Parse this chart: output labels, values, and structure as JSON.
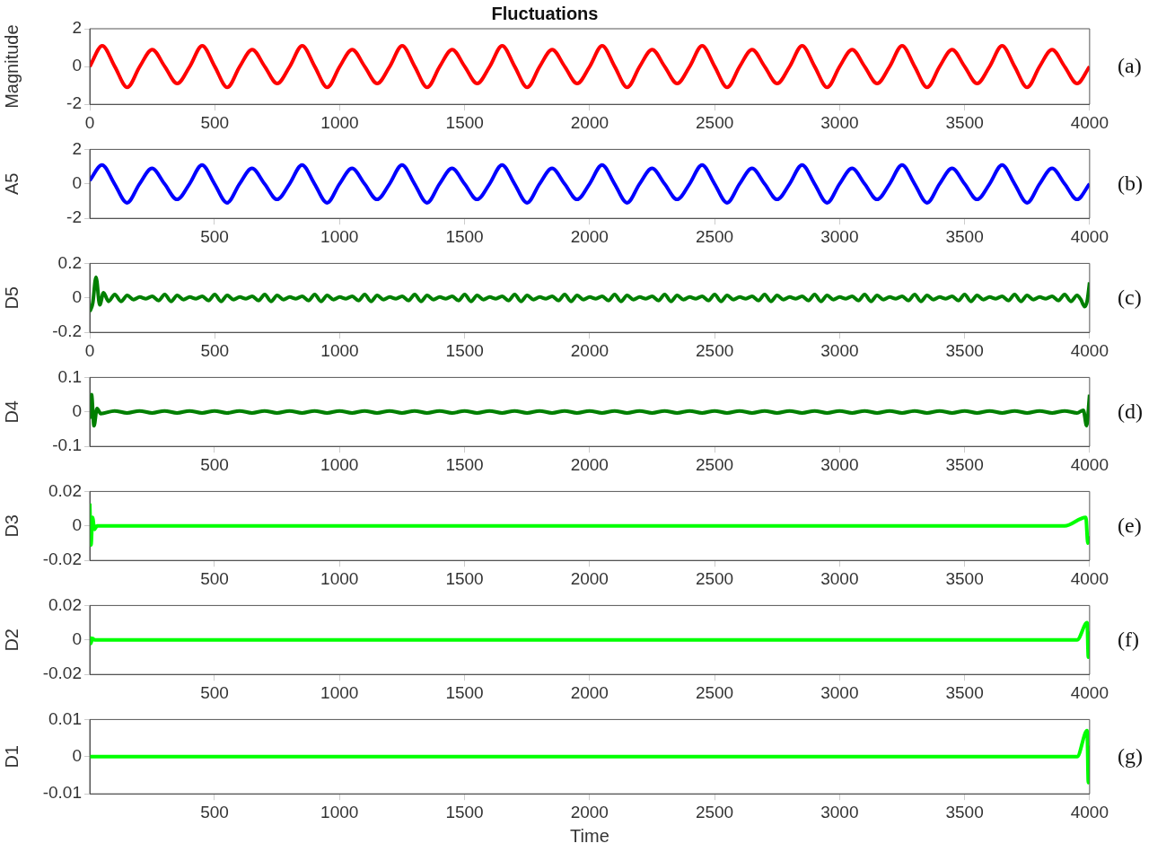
{
  "chart_data": [
    {
      "type": "line",
      "title": "Fluctuations",
      "ylabel": "Magnitude",
      "annotations": [
        "(a)"
      ],
      "legend": false,
      "grid": false,
      "xlim": [
        0,
        4000
      ],
      "xticks": [
        0,
        500,
        1000,
        1500,
        2000,
        2500,
        3000,
        3500,
        4000
      ],
      "ylim": [
        -2,
        2
      ],
      "yticks": [
        -2,
        0,
        2
      ],
      "series": [
        {
          "color": "#ff0000",
          "x": [
            0,
            50,
            100,
            150,
            200,
            250,
            300,
            350,
            400,
            450,
            500,
            550,
            600,
            650,
            700,
            750,
            800,
            850,
            900,
            950,
            1000,
            1050,
            1100,
            1150,
            1200,
            1250,
            1300,
            1350,
            1400,
            1450,
            1500,
            1550,
            1600,
            1650,
            1700,
            1750,
            1800,
            1850,
            1900,
            1950,
            2000,
            2050,
            2100,
            2150,
            2200,
            2250,
            2300,
            2350,
            2400,
            2450,
            2500,
            2550,
            2600,
            2650,
            2700,
            2750,
            2800,
            2850,
            2900,
            2950,
            3000,
            3050,
            3100,
            3150,
            3200,
            3250,
            3300,
            3350,
            3400,
            3450,
            3500,
            3550,
            3600,
            3650,
            3700,
            3750,
            3800,
            3850,
            3900,
            3950,
            4000
          ],
          "values": [
            0,
            1.1,
            0,
            -1.1,
            0,
            0.9,
            0,
            -0.9,
            0,
            1.1,
            0,
            -1.1,
            0,
            0.9,
            0,
            -0.9,
            0,
            1.1,
            0,
            -1.1,
            0,
            0.9,
            0,
            -0.9,
            0,
            1.1,
            0,
            -1.1,
            0,
            0.9,
            0,
            -0.9,
            0,
            1.1,
            0,
            -1.1,
            0,
            0.9,
            0,
            -0.9,
            0,
            1.1,
            0,
            -1.1,
            0,
            0.9,
            0,
            -0.9,
            0,
            1.1,
            0,
            -1.1,
            0,
            0.9,
            0,
            -0.9,
            0,
            1.1,
            0,
            -1.1,
            0,
            0.9,
            0,
            -0.9,
            0,
            1.1,
            0,
            -1.1,
            0,
            0.9,
            0,
            -0.9,
            0,
            1.1,
            0,
            -1.1,
            0,
            0.9,
            0,
            -0.9,
            0
          ]
        }
      ]
    },
    {
      "type": "line",
      "ylabel": "A5",
      "annotations": [
        "(b)"
      ],
      "legend": false,
      "grid": false,
      "xlim": [
        1,
        4000
      ],
      "xticks": [
        500,
        1000,
        1500,
        2000,
        2500,
        3000,
        3500,
        4000
      ],
      "ylim": [
        -2,
        2
      ],
      "yticks": [
        -2,
        0,
        2
      ],
      "series": [
        {
          "color": "#0000ff",
          "x": [
            1,
            50,
            100,
            150,
            200,
            250,
            300,
            350,
            400,
            450,
            500,
            550,
            600,
            650,
            700,
            750,
            800,
            850,
            900,
            950,
            1000,
            1050,
            1100,
            1150,
            1200,
            1250,
            1300,
            1350,
            1400,
            1450,
            1500,
            1550,
            1600,
            1650,
            1700,
            1750,
            1800,
            1850,
            1900,
            1950,
            2000,
            2050,
            2100,
            2150,
            2200,
            2250,
            2300,
            2350,
            2400,
            2450,
            2500,
            2550,
            2600,
            2650,
            2700,
            2750,
            2800,
            2850,
            2900,
            2950,
            3000,
            3050,
            3100,
            3150,
            3200,
            3250,
            3300,
            3350,
            3400,
            3450,
            3500,
            3550,
            3600,
            3650,
            3700,
            3750,
            3800,
            3850,
            3900,
            3950,
            4000
          ],
          "values": [
            0.2,
            1.1,
            0,
            -1.1,
            0,
            0.9,
            0,
            -0.9,
            0,
            1.1,
            0,
            -1.1,
            0,
            0.9,
            0,
            -0.9,
            0,
            1.1,
            0,
            -1.1,
            0,
            0.9,
            0,
            -0.9,
            0,
            1.1,
            0,
            -1.1,
            0,
            0.9,
            0,
            -0.9,
            0,
            1.1,
            0,
            -1.1,
            0,
            0.9,
            0,
            -0.9,
            0,
            1.1,
            0,
            -1.1,
            0,
            0.9,
            0,
            -0.9,
            0,
            1.1,
            0,
            -1.1,
            0,
            0.9,
            0,
            -0.9,
            0,
            1.1,
            0,
            -1.1,
            0,
            0.9,
            0,
            -0.9,
            0,
            1.1,
            0,
            -1.1,
            0,
            0.9,
            0,
            -0.9,
            0,
            1.1,
            0,
            -1.1,
            0,
            0.9,
            0,
            -0.9,
            0
          ]
        }
      ]
    },
    {
      "type": "line",
      "ylabel": "D5",
      "annotations": [
        "(c)"
      ],
      "legend": false,
      "grid": false,
      "xlim": [
        0,
        4000
      ],
      "xticks": [
        0,
        500,
        1000,
        1500,
        2000,
        2500,
        3000,
        3500,
        4000
      ],
      "ylim": [
        -0.2,
        0.2
      ],
      "yticks": [
        -0.2,
        0,
        0.2
      ],
      "series": [
        {
          "color": "#007f00",
          "x": [
            0,
            12,
            25,
            40,
            55,
            75,
            100,
            125,
            150,
            175,
            200,
            225,
            250,
            275,
            300,
            325,
            350,
            375,
            400,
            425,
            450,
            475,
            500,
            525,
            550,
            575,
            600,
            625,
            650,
            675,
            700,
            725,
            750,
            775,
            800,
            825,
            850,
            875,
            900,
            925,
            950,
            975,
            1000,
            1025,
            1050,
            1075,
            1100,
            1125,
            1150,
            1175,
            1200,
            1225,
            1250,
            1275,
            1300,
            1325,
            1350,
            1375,
            1400,
            1425,
            1450,
            1475,
            1500,
            1525,
            1550,
            1575,
            1600,
            1625,
            1650,
            1675,
            1700,
            1725,
            1750,
            1775,
            1800,
            1825,
            1850,
            1875,
            1900,
            1925,
            1950,
            1975,
            2000,
            2025,
            2050,
            2075,
            2100,
            2125,
            2150,
            2175,
            2200,
            2225,
            2250,
            2275,
            2300,
            2325,
            2350,
            2375,
            2400,
            2425,
            2450,
            2475,
            2500,
            2525,
            2550,
            2575,
            2600,
            2625,
            2650,
            2675,
            2700,
            2725,
            2750,
            2775,
            2800,
            2825,
            2850,
            2875,
            2900,
            2925,
            2950,
            2975,
            3000,
            3025,
            3050,
            3075,
            3100,
            3125,
            3150,
            3175,
            3200,
            3225,
            3250,
            3275,
            3300,
            3325,
            3350,
            3375,
            3400,
            3425,
            3450,
            3475,
            3500,
            3525,
            3550,
            3575,
            3600,
            3625,
            3650,
            3675,
            3700,
            3725,
            3750,
            3775,
            3800,
            3825,
            3850,
            3875,
            3900,
            3925,
            3950,
            3965,
            3980,
            3990,
            4000
          ],
          "values": [
            -0.08,
            -0.03,
            0.12,
            -0.04,
            0.03,
            -0.02,
            0.02,
            -0.02,
            0.015,
            -0.01,
            0.005,
            -0.005,
            0.01,
            -0.015,
            0.02,
            -0.02,
            0.015,
            -0.01,
            0.005,
            -0.005,
            0.01,
            -0.015,
            0.02,
            -0.02,
            0.015,
            -0.01,
            0.005,
            -0.005,
            0.01,
            -0.015,
            0.02,
            -0.02,
            0.015,
            -0.01,
            0.005,
            -0.005,
            0.01,
            -0.015,
            0.02,
            -0.02,
            0.015,
            -0.01,
            0.005,
            -0.005,
            0.01,
            -0.015,
            0.02,
            -0.02,
            0.015,
            -0.01,
            0.005,
            -0.005,
            0.01,
            -0.015,
            0.02,
            -0.02,
            0.015,
            -0.01,
            0.005,
            -0.005,
            0.01,
            -0.015,
            0.02,
            -0.02,
            0.015,
            -0.01,
            0.005,
            -0.005,
            0.01,
            -0.015,
            0.02,
            -0.02,
            0.015,
            -0.01,
            0.005,
            -0.005,
            0.01,
            -0.015,
            0.02,
            -0.02,
            0.015,
            -0.01,
            0.005,
            -0.005,
            0.01,
            -0.015,
            0.02,
            -0.02,
            0.015,
            -0.01,
            0.005,
            -0.005,
            0.01,
            -0.015,
            0.02,
            -0.02,
            0.015,
            -0.01,
            0.005,
            -0.005,
            0.01,
            -0.015,
            0.02,
            -0.02,
            0.015,
            -0.01,
            0.005,
            -0.005,
            0.01,
            -0.015,
            0.02,
            -0.02,
            0.015,
            -0.01,
            0.005,
            -0.005,
            0.01,
            -0.015,
            0.02,
            -0.02,
            0.015,
            -0.01,
            0.005,
            -0.005,
            0.01,
            -0.015,
            0.02,
            -0.02,
            0.015,
            -0.01,
            0.005,
            -0.005,
            0.01,
            -0.015,
            0.02,
            -0.02,
            0.015,
            -0.01,
            0.005,
            -0.005,
            0.01,
            -0.015,
            0.02,
            -0.02,
            0.015,
            -0.01,
            0.005,
            -0.005,
            0.01,
            -0.015,
            0.02,
            -0.02,
            0.015,
            -0.01,
            0.005,
            -0.005,
            0.01,
            -0.015,
            0.02,
            -0.02,
            0.015,
            -0.01,
            -0.05,
            -0.02,
            0.09
          ]
        }
      ]
    },
    {
      "type": "line",
      "ylabel": "D4",
      "annotations": [
        "(d)"
      ],
      "legend": false,
      "grid": false,
      "xlim": [
        1,
        4000
      ],
      "xticks": [
        500,
        1000,
        1500,
        2000,
        2500,
        3000,
        3500,
        4000
      ],
      "ylim": [
        -0.1,
        0.1
      ],
      "yticks": [
        -0.1,
        0,
        0.1
      ],
      "series": [
        {
          "color": "#007f00",
          "x": [
            1,
            8,
            18,
            30,
            45,
            100,
            150,
            200,
            250,
            300,
            350,
            400,
            450,
            500,
            550,
            600,
            650,
            700,
            750,
            800,
            850,
            900,
            950,
            1000,
            1050,
            1100,
            1150,
            1200,
            1250,
            1300,
            1350,
            1400,
            1450,
            1500,
            1550,
            1600,
            1650,
            1700,
            1750,
            1800,
            1850,
            1900,
            1950,
            2000,
            2050,
            2100,
            2150,
            2200,
            2250,
            2300,
            2350,
            2400,
            2450,
            2500,
            2550,
            2600,
            2650,
            2700,
            2750,
            2800,
            2850,
            2900,
            2950,
            3000,
            3050,
            3100,
            3150,
            3200,
            3250,
            3300,
            3350,
            3400,
            3450,
            3500,
            3550,
            3600,
            3650,
            3700,
            3750,
            3800,
            3850,
            3900,
            3950,
            3975,
            3988,
            4000
          ],
          "values": [
            -0.02,
            0.05,
            -0.04,
            0.01,
            -0.005,
            0.003,
            -0.003,
            0.003,
            -0.003,
            0.003,
            -0.003,
            0.003,
            -0.003,
            0.003,
            -0.003,
            0.003,
            -0.003,
            0.003,
            -0.003,
            0.003,
            -0.003,
            0.003,
            -0.003,
            0.003,
            -0.003,
            0.003,
            -0.003,
            0.003,
            -0.003,
            0.003,
            -0.003,
            0.003,
            -0.003,
            0.003,
            -0.003,
            0.003,
            -0.003,
            0.003,
            -0.003,
            0.003,
            -0.003,
            0.003,
            -0.003,
            0.003,
            -0.003,
            0.003,
            -0.003,
            0.003,
            -0.003,
            0.003,
            -0.003,
            0.003,
            -0.003,
            0.003,
            -0.003,
            0.003,
            -0.003,
            0.003,
            -0.003,
            0.003,
            -0.003,
            0.003,
            -0.003,
            0.003,
            -0.003,
            0.003,
            -0.003,
            0.003,
            -0.003,
            0.003,
            -0.003,
            0.003,
            -0.003,
            0.003,
            -0.003,
            0.003,
            -0.003,
            0.003,
            -0.003,
            0.003,
            -0.003,
            0.003,
            -0.003,
            0.005,
            -0.04,
            0.05
          ]
        }
      ]
    },
    {
      "type": "line",
      "ylabel": "D3",
      "annotations": [
        "(e)"
      ],
      "legend": false,
      "grid": false,
      "xlim": [
        1,
        4000
      ],
      "xticks": [
        500,
        1000,
        1500,
        2000,
        2500,
        3000,
        3500,
        4000
      ],
      "ylim": [
        -0.02,
        0.02
      ],
      "yticks": [
        -0.02,
        0,
        0.02
      ],
      "series": [
        {
          "color": "#00ff00",
          "x": [
            1,
            6,
            12,
            20,
            30,
            100,
            3900,
            3985,
            3993,
            4000
          ],
          "values": [
            0.013,
            -0.011,
            0.005,
            -0.002,
            0,
            0,
            0,
            0.005,
            -0.01,
            -0.006
          ]
        }
      ]
    },
    {
      "type": "line",
      "ylabel": "D2",
      "annotations": [
        "(f)"
      ],
      "legend": false,
      "grid": false,
      "xlim": [
        1,
        4000
      ],
      "xticks": [
        500,
        1000,
        1500,
        2000,
        2500,
        3000,
        3500,
        4000
      ],
      "ylim": [
        -0.02,
        0.02
      ],
      "yticks": [
        -0.02,
        0,
        0.02
      ],
      "series": [
        {
          "color": "#00ff00",
          "x": [
            1,
            5,
            12,
            20,
            3950,
            3990,
            3995,
            4000
          ],
          "values": [
            0.002,
            -0.002,
            0.001,
            0,
            0,
            0.01,
            -0.01,
            0.005
          ]
        }
      ]
    },
    {
      "type": "line",
      "xlabel": "Time",
      "ylabel": "D1",
      "annotations": [
        "(g)"
      ],
      "legend": false,
      "grid": false,
      "xlim": [
        1,
        4000
      ],
      "xticks": [
        500,
        1000,
        1500,
        2000,
        2500,
        3000,
        3500,
        4000
      ],
      "ylim": [
        -0.01,
        0.01
      ],
      "yticks": [
        -0.01,
        0,
        0.01
      ],
      "series": [
        {
          "color": "#00ff00",
          "x": [
            1,
            3950,
            3990,
            3995,
            4000
          ],
          "values": [
            0,
            0,
            0.007,
            -0.007,
            0.003
          ]
        }
      ]
    }
  ]
}
